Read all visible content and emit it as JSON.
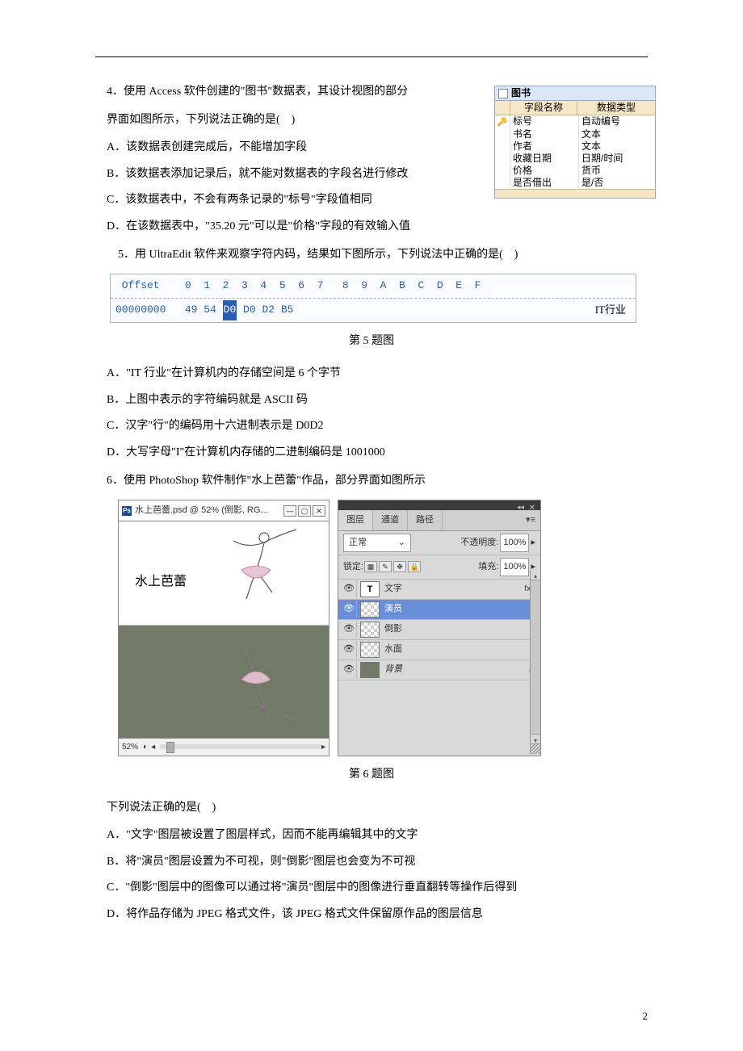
{
  "page_number": "2",
  "q4": {
    "text_l1": "4．使用 Access 软件创建的\"图书\"数据表，其设计视图的部分",
    "text_l2": "界面如图所示，下列说法正确的是(　)",
    "opts": {
      "A": "A．该数据表创建完成后，不能增加字段",
      "B": "B．该数据表添加记录后，就不能对数据表的字段名进行修改",
      "C": "C．该数据表中，不会有两条记录的\"标号\"字段值相同",
      "D": "D．在该数据表中，\"35.20 元\"可以是\"价格\"字段的有效输入值"
    },
    "table": {
      "title": "图书",
      "head_field": "字段名称",
      "head_type": "数据类型",
      "rows": [
        {
          "key": true,
          "field": "标号",
          "type": "自动编号"
        },
        {
          "key": false,
          "field": "书名",
          "type": "文本"
        },
        {
          "key": false,
          "field": "作者",
          "type": "文本"
        },
        {
          "key": false,
          "field": "收藏日期",
          "type": "日期/时间"
        },
        {
          "key": false,
          "field": "价格",
          "type": "货币"
        },
        {
          "key": false,
          "field": "是否借出",
          "type": "是/否"
        }
      ]
    }
  },
  "q5": {
    "text": "5．用 UltraEdit 软件来观察字符内码，结果如下图所示，下列说法中正确的是(　)",
    "caption": "第 5 题图",
    "hex": {
      "header": " Offset    0  1  2  3  4  5  6  7   8  9  A  B  C  D  E  F",
      "addr": "00000000",
      "bytes_before": "49 54 ",
      "byte_hl": "D0",
      "bytes_after": " D0 D2 B5",
      "rtext": "IT行业"
    },
    "opts": {
      "A": "A．\"IT 行业\"在计算机内的存储空间是 6 个字节",
      "B": "B．上图中表示的字符编码就是 ASCII 码",
      "C": "C．汉字\"行\"的编码用十六进制表示是 D0D2",
      "D": "D．大写字母\"I\"在计算机内存储的二进制编码是 1001000"
    }
  },
  "q6": {
    "text": "6．使用 PhotoShop 软件制作\"水上芭蕾\"作品，部分界面如图所示",
    "caption": "第 6 题图",
    "below": "下列说法正确的是(　)",
    "doc_title": "水上芭蕾.psd @ 52% (倒影, RG...",
    "canvas_text": "水上芭蕾",
    "zoom": "52%",
    "panel": {
      "tabs": [
        "图层",
        "通道",
        "路径"
      ],
      "blend": "正常",
      "opacity_label": "不透明度:",
      "opacity_val": "100%",
      "lock_label": "锁定:",
      "fill_label": "填充:",
      "fill_val": "100%",
      "layers": [
        {
          "vis": true,
          "kind": "T",
          "name": "文字",
          "right": "fx ▾"
        },
        {
          "vis": true,
          "kind": "chk",
          "name": "演员",
          "right": "☐",
          "selected": true
        },
        {
          "vis": true,
          "kind": "chk",
          "name": "倒影",
          "right": ""
        },
        {
          "vis": true,
          "kind": "chk",
          "name": "水面",
          "right": ""
        },
        {
          "vis": true,
          "kind": "solid",
          "name": "背景",
          "right": "lock"
        }
      ]
    },
    "opts": {
      "A": "A．\"文字\"图层被设置了图层样式，因而不能再编辑其中的文字",
      "B": "B．将\"演员\"图层设置为不可视，则\"倒影\"图层也会变为不可视",
      "C": "C．\"倒影\"图层中的图像可以通过将\"演员\"图层中的图像进行垂直翻转等操作后得到",
      "D": "D．将作品存储为 JPEG 格式文件，该 JPEG 格式文件保留原作品的图层信息"
    }
  }
}
